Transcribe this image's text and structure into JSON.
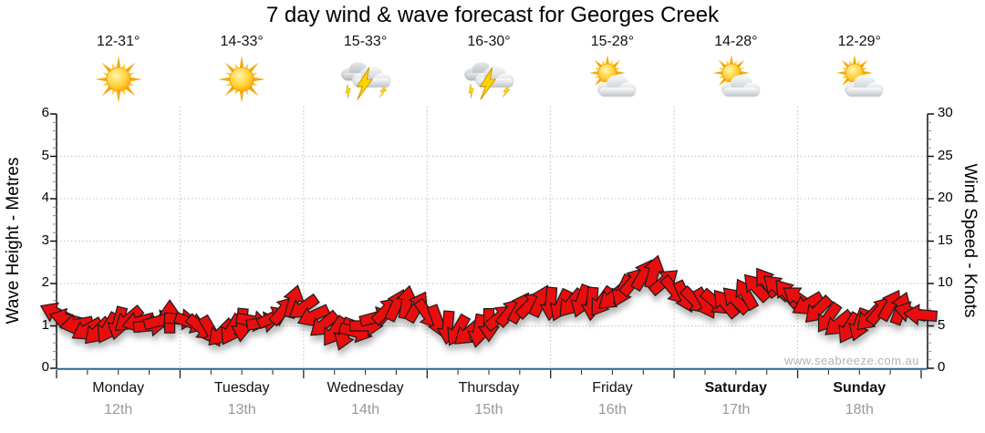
{
  "title": "7 day wind & wave forecast for Georges Creek",
  "watermark": "www.seabreeze.com.au",
  "days": [
    {
      "name": "Monday",
      "date": "12th",
      "temp": "12-31°",
      "icon": "sunny",
      "bold": false
    },
    {
      "name": "Tuesday",
      "date": "13th",
      "temp": "14-33°",
      "icon": "sunny",
      "bold": false
    },
    {
      "name": "Wednesday",
      "date": "14th",
      "temp": "15-33°",
      "icon": "storm",
      "bold": false
    },
    {
      "name": "Thursday",
      "date": "15th",
      "temp": "16-30°",
      "icon": "storm",
      "bold": false
    },
    {
      "name": "Friday",
      "date": "16th",
      "temp": "15-28°",
      "icon": "partly-cloudy",
      "bold": false
    },
    {
      "name": "Saturday",
      "date": "17th",
      "temp": "14-28°",
      "icon": "partly-cloudy",
      "bold": true
    },
    {
      "name": "Sunday",
      "date": "18th",
      "temp": "12-29°",
      "icon": "partly-cloudy",
      "bold": true
    }
  ],
  "chart_data": {
    "type": "wind-arrows",
    "title": "7 day wind & wave forecast for Georges Creek",
    "left_axis": {
      "label": "Wave Height - Metres",
      "min": 0,
      "max": 6,
      "ticks": [
        0,
        1,
        2,
        3,
        4,
        5,
        6
      ]
    },
    "right_axis": {
      "label": "Wind Speed - Knots",
      "min": 0,
      "max": 30,
      "ticks": [
        0,
        5,
        10,
        15,
        20,
        25,
        30
      ]
    },
    "x_axis": {
      "categories": [
        "Monday 12th",
        "Tuesday 13th",
        "Wednesday 14th",
        "Thursday 15th",
        "Friday 16th",
        "Saturday 17th",
        "Sunday 18th"
      ],
      "grid": "dotted day boundaries"
    },
    "wave_height_line": {
      "value_m": 0.05,
      "color": "#2f6390",
      "note": "flat line along baseline"
    },
    "wind_arrows": {
      "hour_start": 0,
      "hour_step": 2,
      "hours_total": 168,
      "speed_knots": [
        6.5,
        5.8,
        5.2,
        4.6,
        4.4,
        4.8,
        5.4,
        5.8,
        5.5,
        5.0,
        5.6,
        6.0,
        5.8,
        5.4,
        4.8,
        4.4,
        4.2,
        4.6,
        5.2,
        5.6,
        5.4,
        6.0,
        6.8,
        7.8,
        7.2,
        6.2,
        5.2,
        4.4,
        4.1,
        4.3,
        5.0,
        6.0,
        6.8,
        7.4,
        7.7,
        7.2,
        6.4,
        5.6,
        4.9,
        4.5,
        4.2,
        4.5,
        5.2,
        6.0,
        6.6,
        7.1,
        7.5,
        7.9,
        7.7,
        7.5,
        7.7,
        8.0,
        7.7,
        7.9,
        8.4,
        9.2,
        10.2,
        11.0,
        11.3,
        10.2,
        9.2,
        8.5,
        8.0,
        7.7,
        7.8,
        7.6,
        8.0,
        8.7,
        9.5,
        10.1,
        9.5,
        8.8,
        8.3,
        7.6,
        6.9,
        6.0,
        5.3,
        4.8,
        5.2,
        6.0,
        6.8,
        7.4,
        7.0,
        6.6,
        6.3
      ],
      "angle_deg_cw_from_east": [
        205,
        195,
        170,
        150,
        135,
        120,
        105,
        140,
        165,
        355,
        345,
        270,
        5,
        20,
        40,
        60,
        135,
        120,
        95,
        10,
        350,
        335,
        310,
        285,
        145,
        155,
        140,
        125,
        110,
        15,
        0,
        345,
        315,
        295,
        280,
        300,
        55,
        70,
        95,
        120,
        140,
        100,
        90,
        320,
        310,
        300,
        315,
        295,
        95,
        115,
        130,
        110,
        95,
        125,
        140,
        115,
        310,
        300,
        285,
        320,
        50,
        65,
        45,
        60,
        40,
        230,
        225,
        240,
        228,
        235,
        222,
        230,
        215,
        150,
        135,
        125,
        140,
        120,
        110,
        135,
        310,
        300,
        290,
        195,
        185
      ]
    },
    "colors": {
      "arrow_fill": "#ea0b0b",
      "arrow_outline": "#1b1b1b",
      "axis_bottom": "#2f6390",
      "axis_side": "#111111",
      "grid": "#bfbfbf",
      "date_text": "#999999",
      "watermark": "#b3b3b3",
      "sun": "#ffb400",
      "cloud": "#c8ccd0",
      "lightning": "#ffd400"
    },
    "legend": "none"
  }
}
